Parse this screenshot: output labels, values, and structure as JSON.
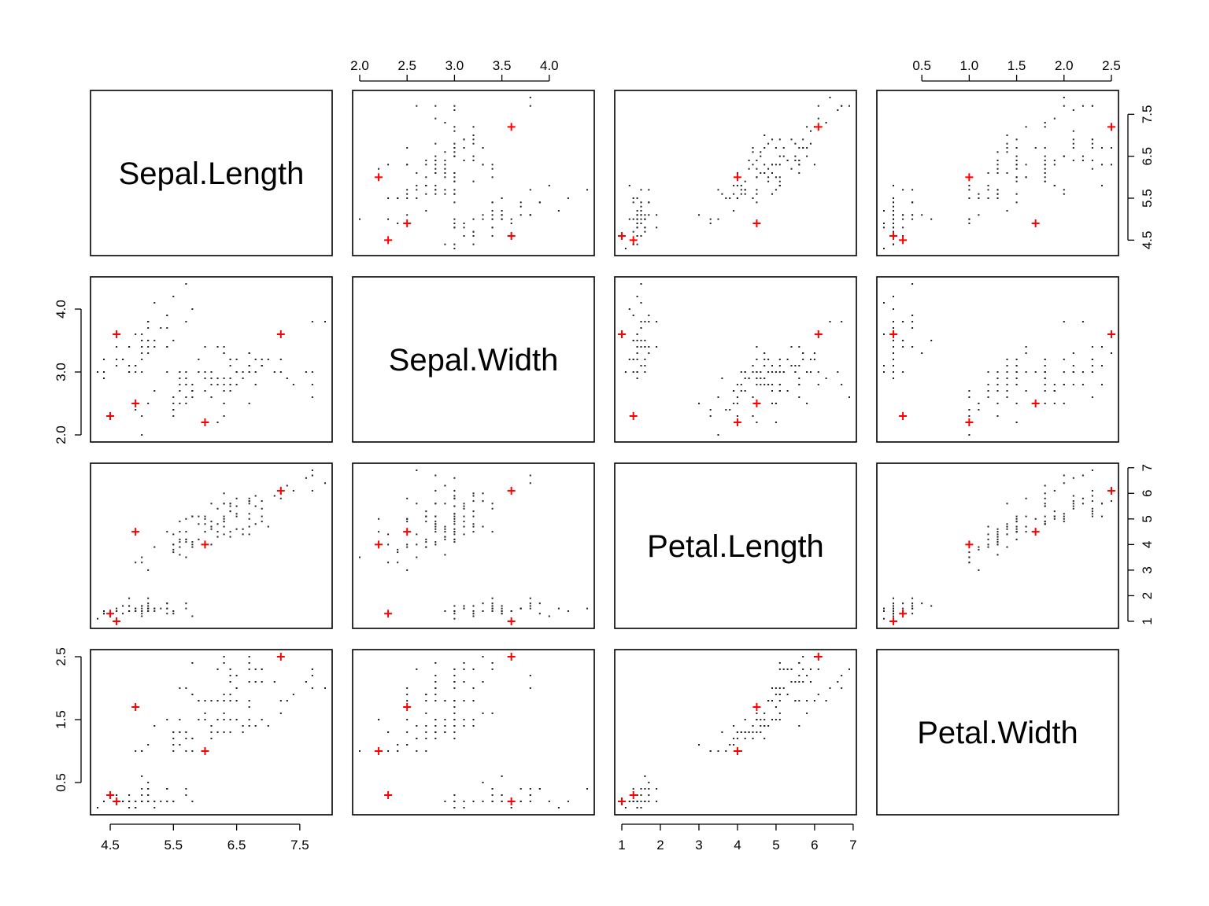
{
  "chart_data": {
    "type": "scatter",
    "kind": "scatterplot-matrix",
    "title": "",
    "variables": [
      "Sepal.Length",
      "Sepal.Width",
      "Petal.Length",
      "Petal.Width"
    ],
    "ranges": {
      "Sepal.Length": [
        4.3,
        7.9
      ],
      "Sepal.Width": [
        2.0,
        4.4
      ],
      "Petal.Length": [
        1.0,
        6.9
      ],
      "Petal.Width": [
        0.1,
        2.5
      ]
    },
    "ticks": {
      "Sepal.Length": [
        4.5,
        5.5,
        6.5,
        7.5
      ],
      "Sepal.Width": [
        2.0,
        2.5,
        3.0,
        3.5,
        4.0
      ],
      "Petal.Length": [
        1,
        2,
        3,
        4,
        5,
        6,
        7
      ],
      "Petal.Width": [
        0.5,
        1.0,
        1.5,
        2.0,
        2.5
      ]
    },
    "tick_labels": {
      "Sepal.Length": [
        "4.5",
        "5.5",
        "6.5",
        "7.5"
      ],
      "Sepal.Width": [
        "2.0",
        "2.5",
        "3.0",
        "3.5",
        "4.0"
      ],
      "Sepal.Width.left": [
        "2.0",
        "3.0",
        "4.0"
      ],
      "Petal.Length": [
        "1",
        "2",
        "3",
        "4",
        "5",
        "6",
        "7"
      ],
      "Petal.Width": [
        "0.5",
        "1.0",
        "1.5",
        "2.0",
        "2.5"
      ],
      "Petal.Width.left": [
        "0.5",
        "1.5",
        "2.5"
      ],
      "Sepal.Length.right": [
        "4.5",
        "5.5",
        "6.5",
        "7.5"
      ]
    },
    "points_color": "#000000",
    "highlight_color": "#ff0000",
    "highlight_marker": "plus",
    "highlighted": [
      [
        4.5,
        2.3,
        1.3,
        0.3
      ],
      [
        4.6,
        3.6,
        1.0,
        0.2
      ],
      [
        4.9,
        2.5,
        4.5,
        1.7
      ],
      [
        6.0,
        2.2,
        4.0,
        1.0
      ],
      [
        7.2,
        3.6,
        6.1,
        2.5
      ]
    ],
    "data": [
      [
        5.1,
        3.5,
        1.4,
        0.2
      ],
      [
        4.9,
        3.0,
        1.4,
        0.2
      ],
      [
        4.7,
        3.2,
        1.3,
        0.2
      ],
      [
        4.6,
        3.1,
        1.5,
        0.2
      ],
      [
        5.0,
        3.6,
        1.4,
        0.2
      ],
      [
        5.4,
        3.9,
        1.7,
        0.4
      ],
      [
        4.6,
        3.4,
        1.4,
        0.3
      ],
      [
        5.0,
        3.4,
        1.5,
        0.2
      ],
      [
        4.4,
        2.9,
        1.4,
        0.2
      ],
      [
        4.9,
        3.1,
        1.5,
        0.1
      ],
      [
        5.4,
        3.7,
        1.5,
        0.2
      ],
      [
        4.8,
        3.4,
        1.6,
        0.2
      ],
      [
        4.8,
        3.0,
        1.4,
        0.1
      ],
      [
        4.3,
        3.0,
        1.1,
        0.1
      ],
      [
        5.8,
        4.0,
        1.2,
        0.2
      ],
      [
        5.7,
        4.4,
        1.5,
        0.4
      ],
      [
        5.4,
        3.9,
        1.3,
        0.4
      ],
      [
        5.1,
        3.5,
        1.4,
        0.3
      ],
      [
        5.7,
        3.8,
        1.7,
        0.3
      ],
      [
        5.1,
        3.8,
        1.5,
        0.3
      ],
      [
        5.4,
        3.4,
        1.7,
        0.2
      ],
      [
        5.1,
        3.7,
        1.5,
        0.4
      ],
      [
        4.6,
        3.6,
        1.0,
        0.2
      ],
      [
        5.1,
        3.3,
        1.7,
        0.5
      ],
      [
        4.8,
        3.4,
        1.9,
        0.2
      ],
      [
        5.0,
        3.0,
        1.6,
        0.2
      ],
      [
        5.0,
        3.4,
        1.6,
        0.4
      ],
      [
        5.2,
        3.5,
        1.5,
        0.2
      ],
      [
        5.2,
        3.4,
        1.4,
        0.2
      ],
      [
        4.7,
        3.2,
        1.6,
        0.2
      ],
      [
        4.8,
        3.1,
        1.6,
        0.2
      ],
      [
        5.4,
        3.4,
        1.5,
        0.4
      ],
      [
        5.2,
        4.1,
        1.5,
        0.1
      ],
      [
        5.5,
        4.2,
        1.4,
        0.2
      ],
      [
        4.9,
        3.1,
        1.5,
        0.2
      ],
      [
        5.0,
        3.2,
        1.2,
        0.2
      ],
      [
        5.5,
        3.5,
        1.3,
        0.2
      ],
      [
        4.9,
        3.6,
        1.4,
        0.1
      ],
      [
        4.4,
        3.0,
        1.3,
        0.2
      ],
      [
        5.1,
        3.4,
        1.5,
        0.2
      ],
      [
        5.0,
        3.5,
        1.3,
        0.3
      ],
      [
        4.5,
        2.3,
        1.3,
        0.3
      ],
      [
        4.4,
        3.2,
        1.3,
        0.2
      ],
      [
        5.0,
        3.5,
        1.6,
        0.6
      ],
      [
        5.1,
        3.8,
        1.9,
        0.4
      ],
      [
        4.8,
        3.0,
        1.4,
        0.3
      ],
      [
        5.1,
        3.8,
        1.6,
        0.2
      ],
      [
        4.6,
        3.2,
        1.4,
        0.2
      ],
      [
        5.3,
        3.7,
        1.5,
        0.2
      ],
      [
        5.0,
        3.3,
        1.4,
        0.2
      ],
      [
        7.0,
        3.2,
        4.7,
        1.4
      ],
      [
        6.4,
        3.2,
        4.5,
        1.5
      ],
      [
        6.9,
        3.1,
        4.9,
        1.5
      ],
      [
        5.5,
        2.3,
        4.0,
        1.3
      ],
      [
        6.5,
        2.8,
        4.6,
        1.5
      ],
      [
        5.7,
        2.8,
        4.5,
        1.3
      ],
      [
        6.3,
        3.3,
        4.7,
        1.6
      ],
      [
        4.9,
        2.4,
        3.3,
        1.0
      ],
      [
        6.6,
        2.9,
        4.6,
        1.3
      ],
      [
        5.2,
        2.7,
        3.9,
        1.4
      ],
      [
        5.0,
        2.0,
        3.5,
        1.0
      ],
      [
        5.9,
        3.0,
        4.2,
        1.5
      ],
      [
        6.0,
        2.2,
        4.0,
        1.0
      ],
      [
        6.1,
        2.9,
        4.7,
        1.4
      ],
      [
        5.6,
        2.9,
        3.6,
        1.3
      ],
      [
        6.7,
        3.1,
        4.4,
        1.4
      ],
      [
        5.6,
        3.0,
        4.5,
        1.5
      ],
      [
        5.8,
        2.7,
        4.1,
        1.0
      ],
      [
        6.2,
        2.2,
        4.5,
        1.5
      ],
      [
        5.6,
        2.5,
        3.9,
        1.1
      ],
      [
        5.9,
        3.2,
        4.8,
        1.8
      ],
      [
        6.1,
        2.8,
        4.0,
        1.3
      ],
      [
        6.3,
        2.5,
        4.9,
        1.5
      ],
      [
        6.1,
        2.8,
        4.7,
        1.2
      ],
      [
        6.4,
        2.9,
        4.3,
        1.3
      ],
      [
        6.6,
        3.0,
        4.4,
        1.4
      ],
      [
        6.8,
        2.8,
        4.8,
        1.4
      ],
      [
        6.7,
        3.0,
        5.0,
        1.7
      ],
      [
        6.0,
        2.9,
        4.5,
        1.5
      ],
      [
        5.7,
        2.6,
        3.5,
        1.0
      ],
      [
        5.5,
        2.4,
        3.8,
        1.1
      ],
      [
        5.5,
        2.4,
        3.7,
        1.0
      ],
      [
        5.8,
        2.7,
        3.9,
        1.2
      ],
      [
        6.0,
        2.7,
        5.1,
        1.6
      ],
      [
        5.4,
        3.0,
        4.5,
        1.5
      ],
      [
        6.0,
        3.4,
        4.5,
        1.6
      ],
      [
        6.7,
        3.1,
        4.7,
        1.5
      ],
      [
        6.3,
        2.3,
        4.4,
        1.3
      ],
      [
        5.6,
        3.0,
        4.1,
        1.3
      ],
      [
        5.5,
        2.5,
        4.0,
        1.3
      ],
      [
        5.5,
        2.6,
        4.4,
        1.2
      ],
      [
        6.1,
        3.0,
        4.6,
        1.4
      ],
      [
        5.8,
        2.6,
        4.0,
        1.2
      ],
      [
        5.0,
        2.3,
        3.3,
        1.0
      ],
      [
        5.6,
        2.7,
        4.2,
        1.3
      ],
      [
        5.7,
        3.0,
        4.2,
        1.2
      ],
      [
        5.7,
        2.9,
        4.2,
        1.3
      ],
      [
        6.2,
        2.9,
        4.3,
        1.3
      ],
      [
        5.1,
        2.5,
        3.0,
        1.1
      ],
      [
        5.7,
        2.8,
        4.1,
        1.3
      ],
      [
        6.3,
        3.3,
        6.0,
        2.5
      ],
      [
        5.8,
        2.7,
        5.1,
        1.9
      ],
      [
        7.1,
        3.0,
        5.9,
        2.1
      ],
      [
        6.3,
        2.9,
        5.6,
        1.8
      ],
      [
        6.5,
        3.0,
        5.8,
        2.2
      ],
      [
        7.6,
        3.0,
        6.6,
        2.1
      ],
      [
        4.9,
        2.5,
        4.5,
        1.7
      ],
      [
        7.3,
        2.9,
        6.3,
        1.8
      ],
      [
        6.7,
        2.5,
        5.8,
        1.8
      ],
      [
        7.2,
        3.6,
        6.1,
        2.5
      ],
      [
        6.5,
        3.2,
        5.1,
        2.0
      ],
      [
        6.4,
        2.7,
        5.3,
        1.9
      ],
      [
        6.8,
        3.0,
        5.5,
        2.1
      ],
      [
        5.7,
        2.5,
        5.0,
        2.0
      ],
      [
        5.8,
        2.8,
        5.1,
        2.4
      ],
      [
        6.4,
        3.2,
        5.3,
        2.3
      ],
      [
        6.5,
        3.0,
        5.5,
        1.8
      ],
      [
        7.7,
        3.8,
        6.7,
        2.2
      ],
      [
        7.7,
        2.6,
        6.9,
        2.3
      ],
      [
        6.0,
        2.2,
        5.0,
        1.5
      ],
      [
        6.9,
        3.2,
        5.7,
        2.3
      ],
      [
        5.6,
        2.8,
        4.9,
        2.0
      ],
      [
        7.7,
        2.8,
        6.7,
        2.0
      ],
      [
        6.3,
        2.7,
        4.9,
        1.8
      ],
      [
        6.7,
        3.3,
        5.7,
        2.1
      ],
      [
        7.2,
        3.2,
        6.0,
        1.8
      ],
      [
        6.2,
        2.8,
        4.8,
        1.8
      ],
      [
        6.1,
        3.0,
        4.9,
        1.8
      ],
      [
        6.4,
        2.8,
        5.6,
        2.1
      ],
      [
        7.2,
        3.0,
        5.8,
        1.6
      ],
      [
        7.4,
        2.8,
        6.1,
        1.9
      ],
      [
        7.9,
        3.8,
        6.4,
        2.0
      ],
      [
        6.4,
        2.8,
        5.6,
        2.2
      ],
      [
        6.3,
        2.8,
        5.1,
        1.5
      ],
      [
        6.1,
        2.6,
        5.6,
        1.4
      ],
      [
        7.7,
        3.0,
        6.1,
        2.3
      ],
      [
        6.3,
        3.4,
        5.6,
        2.4
      ],
      [
        6.4,
        3.1,
        5.5,
        1.8
      ],
      [
        6.0,
        3.0,
        4.8,
        1.8
      ],
      [
        6.9,
        3.1,
        5.4,
        2.1
      ],
      [
        6.7,
        3.1,
        5.6,
        2.4
      ],
      [
        6.9,
        3.1,
        5.1,
        2.3
      ],
      [
        5.8,
        2.7,
        5.1,
        1.9
      ],
      [
        6.8,
        3.2,
        5.9,
        2.3
      ],
      [
        6.7,
        3.3,
        5.7,
        2.5
      ],
      [
        6.7,
        3.0,
        5.2,
        2.3
      ],
      [
        6.3,
        2.5,
        5.0,
        1.9
      ],
      [
        6.5,
        3.0,
        5.2,
        2.0
      ],
      [
        6.2,
        3.4,
        5.4,
        2.3
      ],
      [
        5.9,
        3.0,
        5.1,
        1.8
      ]
    ]
  }
}
